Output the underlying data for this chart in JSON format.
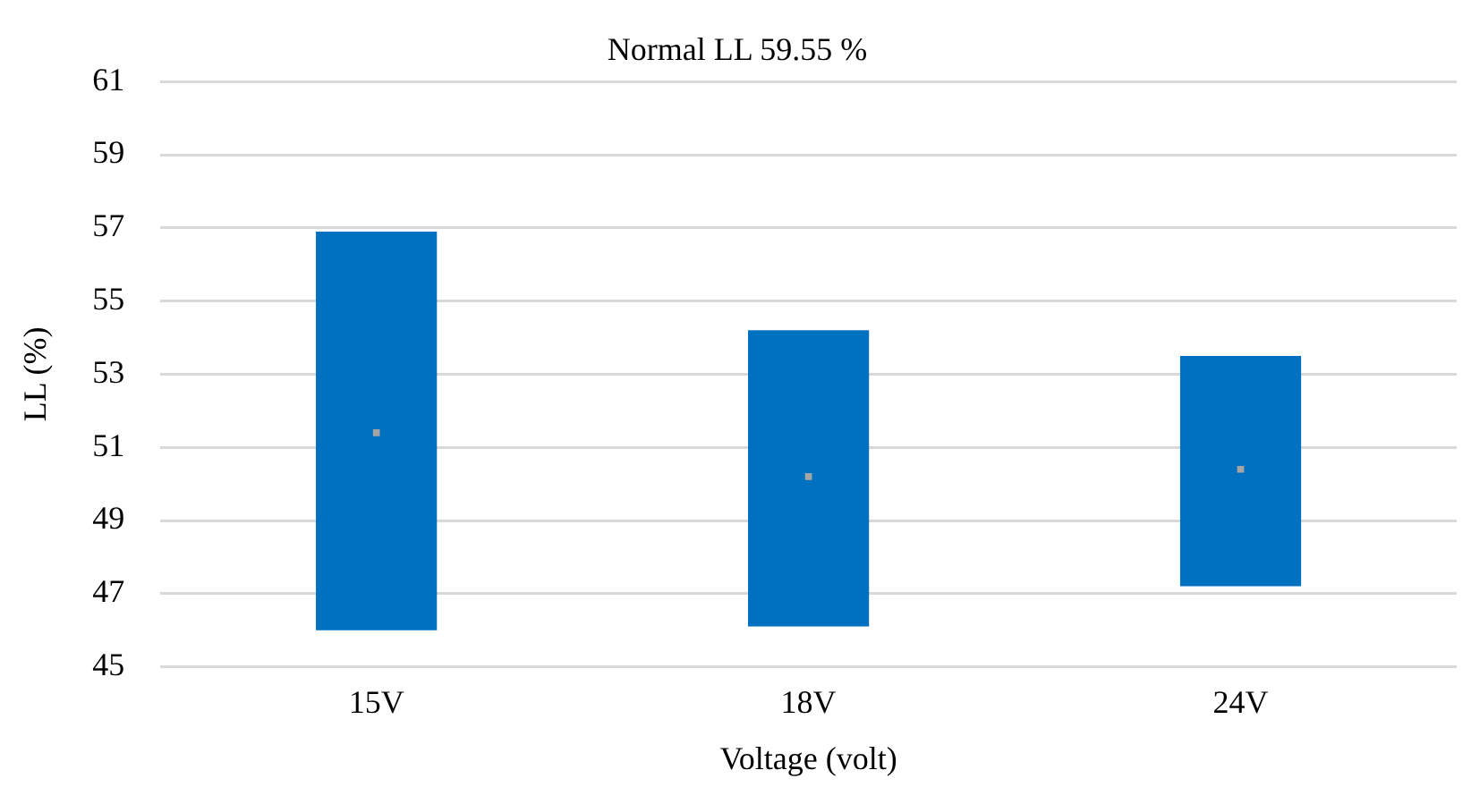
{
  "chart_data": {
    "type": "bar",
    "title": "Normal LL 59.55 %",
    "xlabel": "Voltage (volt)",
    "ylabel": "LL (%)",
    "categories": [
      "15V",
      "18V",
      "24V"
    ],
    "series": [
      {
        "color": "#0070c0",
        "base": [
          46.0,
          46.1,
          47.2
        ],
        "values": [
          10.9,
          8.1,
          6.3
        ]
      },
      {
        "type": "scatter",
        "color": "#a5a5a5",
        "x": [
          "15V",
          "18V",
          "24V"
        ],
        "values": [
          51.4,
          50.2,
          50.4
        ],
        "marker": "square"
      }
    ],
    "ylim": [
      45,
      61
    ],
    "yticks": [
      45,
      47,
      49,
      51,
      53,
      55,
      57,
      59,
      61
    ],
    "grid": "y",
    "legend": false
  }
}
